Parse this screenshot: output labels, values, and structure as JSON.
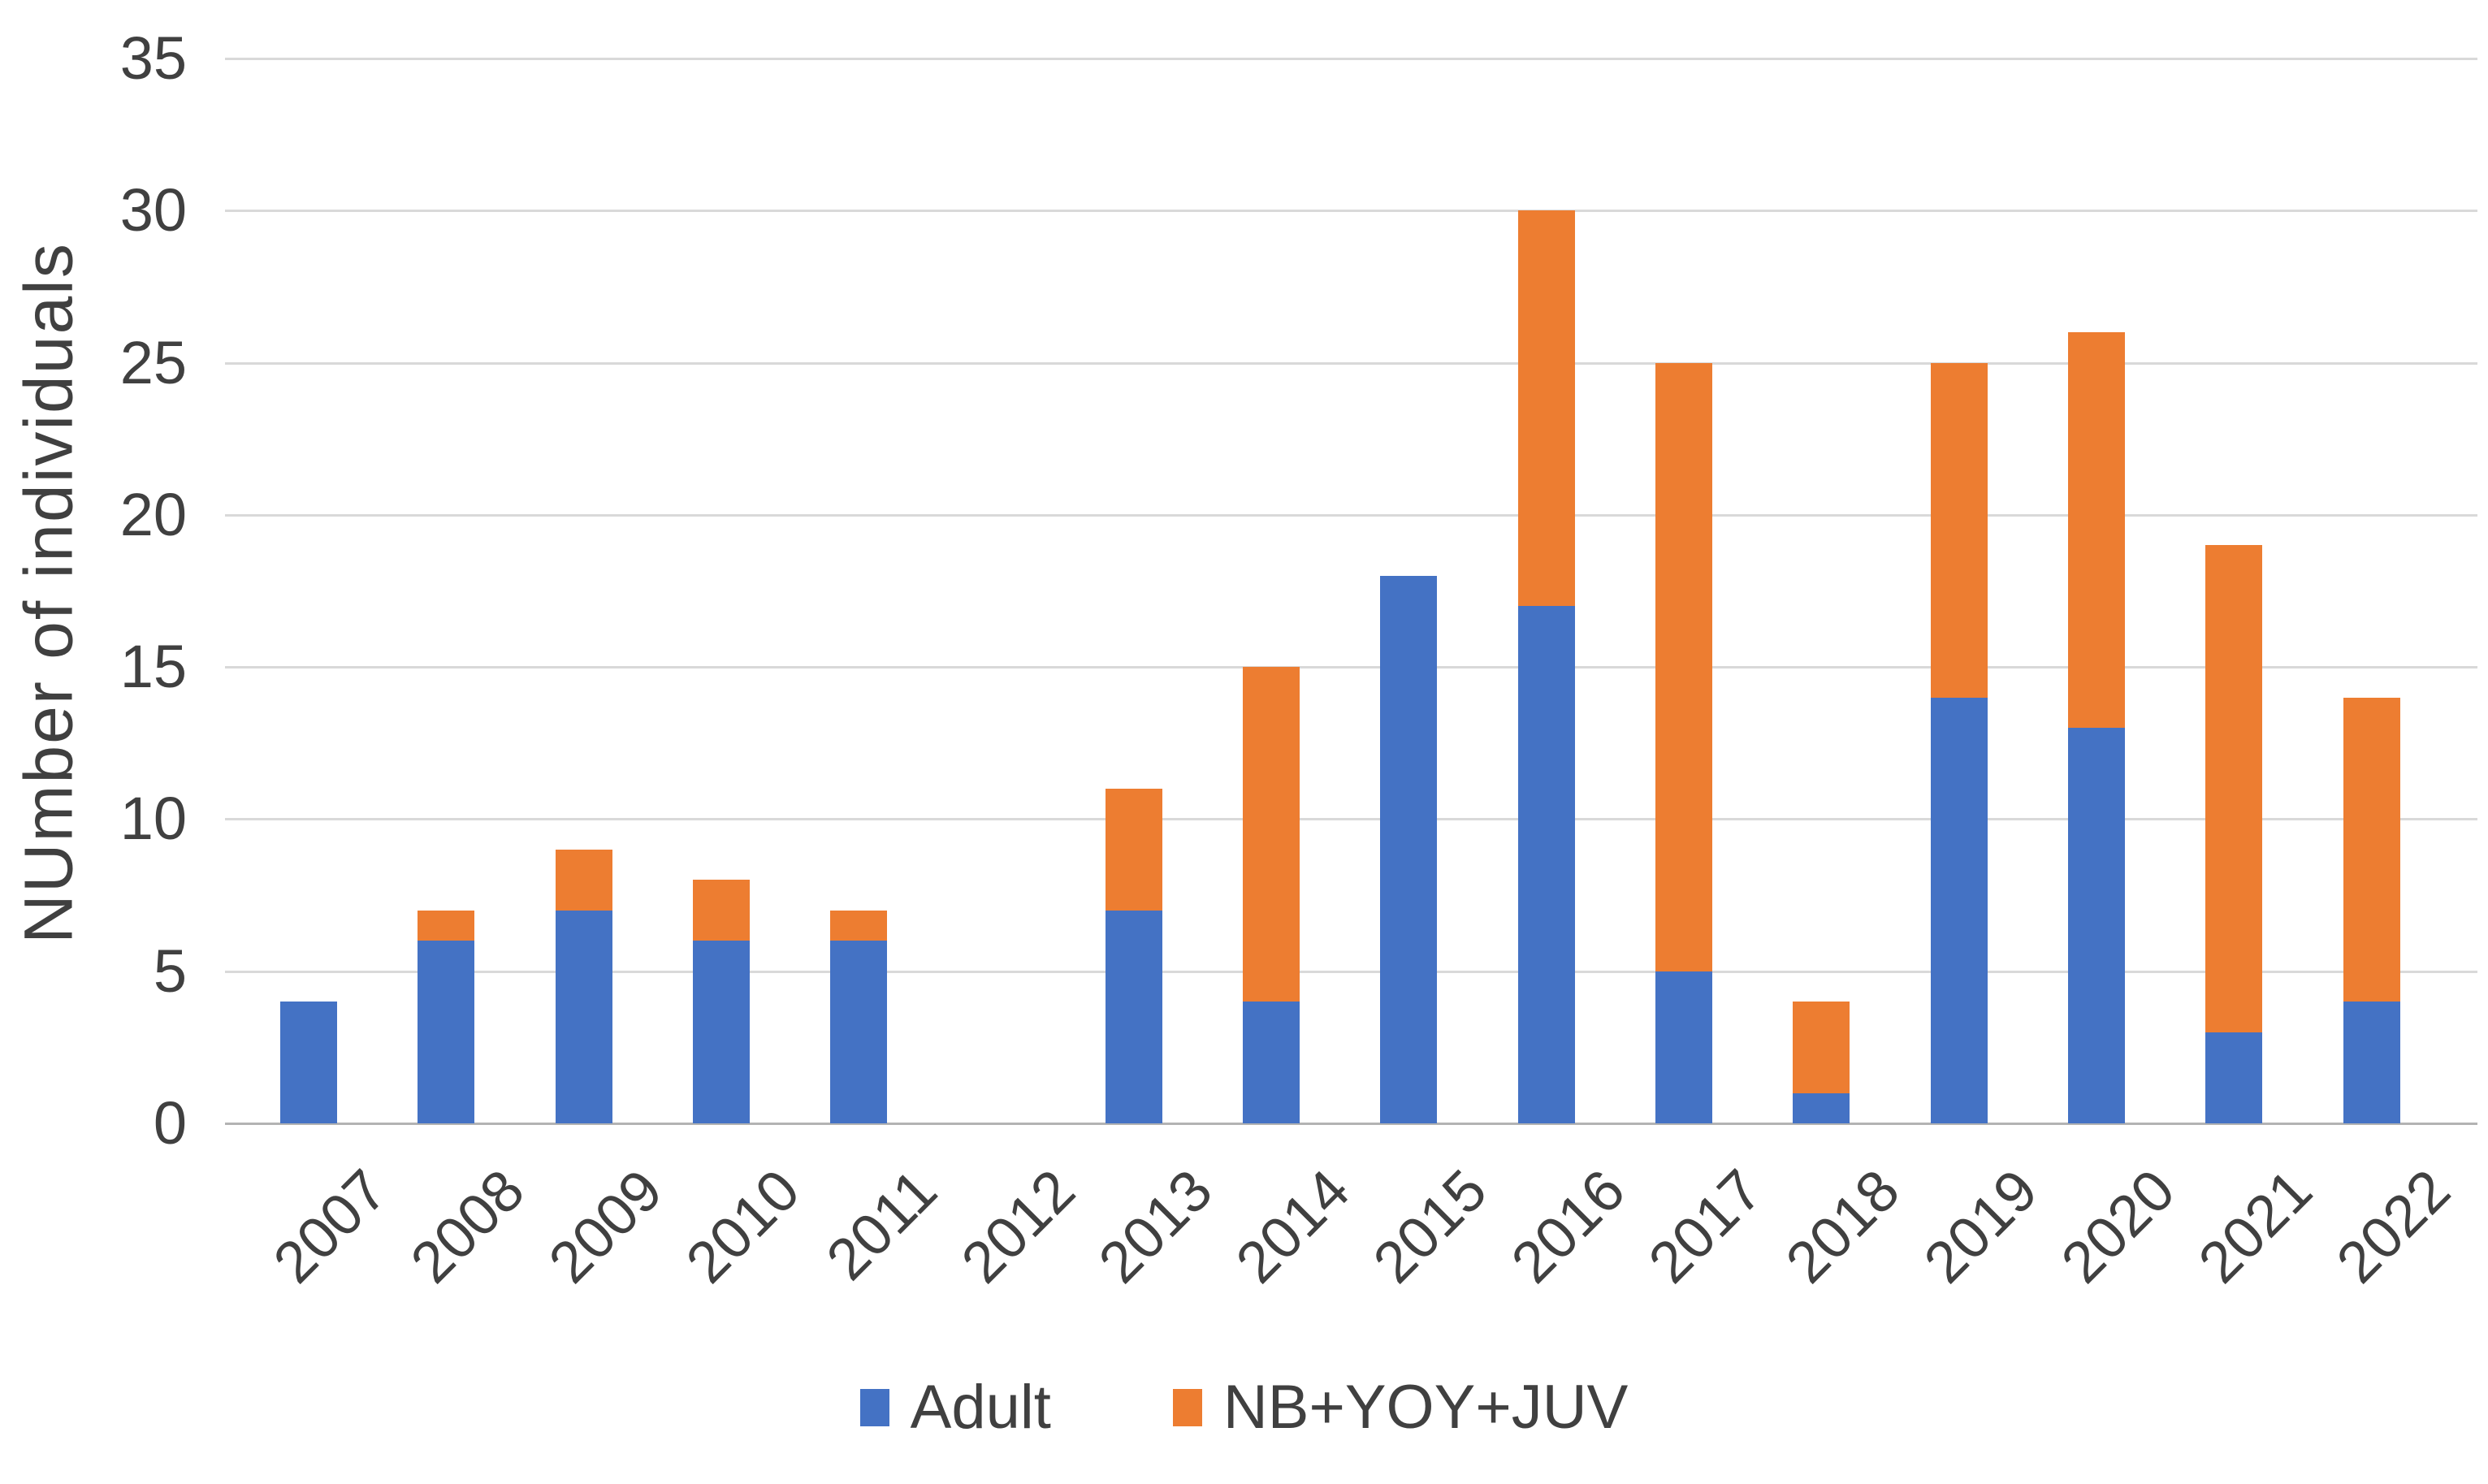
{
  "chart_data": {
    "type": "bar",
    "stacked": true,
    "title": "",
    "xlabel": "",
    "ylabel": "NUmber of individuals",
    "categories": [
      "2007",
      "2008",
      "2009",
      "2010",
      "2011",
      "2012",
      "2013",
      "2014",
      "2015",
      "2016",
      "2017",
      "2018",
      "2019",
      "2020",
      "2021",
      "2022"
    ],
    "series": [
      {
        "name": "Adult",
        "color": "#4472C4",
        "values": [
          4,
          6,
          7,
          6,
          6,
          0,
          7,
          4,
          18,
          17,
          5,
          1,
          14,
          13,
          3,
          4
        ]
      },
      {
        "name": "NB+YOY+JUV",
        "color": "#ED7D31",
        "values": [
          0,
          1,
          2,
          2,
          1,
          0,
          4,
          11,
          0,
          13,
          20,
          3,
          11,
          13,
          16,
          10
        ]
      }
    ],
    "totals": [
      4,
      7,
      9,
      8,
      7,
      0,
      11,
      15,
      18,
      30,
      25,
      4,
      25,
      26,
      19,
      14
    ],
    "ylim": [
      0,
      35
    ],
    "yticks": [
      0,
      5,
      10,
      15,
      20,
      25,
      30,
      35
    ],
    "grid": true,
    "legend_position": "bottom"
  },
  "colors": {
    "adult": "#4472C4",
    "nb_yoy_juv": "#ED7D31",
    "gridline": "#d9d9d9",
    "axis_line": "#b3b3b3",
    "text": "#404040",
    "background": "#ffffff"
  }
}
